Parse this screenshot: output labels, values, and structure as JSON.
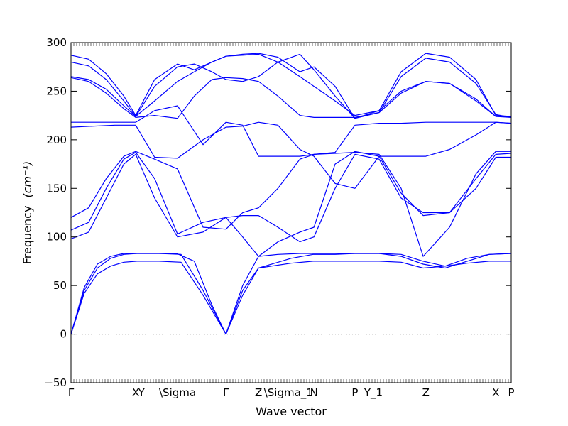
{
  "chart_data": {
    "type": "line",
    "title": "",
    "xlabel": "Wave vector",
    "ylabel": "Frequency",
    "ylabel_unit": "(cm⁻¹)",
    "ylim": [
      -50,
      300
    ],
    "yticks": [
      -50,
      0,
      50,
      100,
      150,
      200,
      250,
      300
    ],
    "xlim": [
      0,
      1
    ],
    "grid": false,
    "zero_line": {
      "y": 0,
      "style": "dotted"
    },
    "line_color": "#0000ff",
    "high_symmetry_points": [
      {
        "label": "Γ",
        "x": 0.0
      },
      {
        "label": "X",
        "x": 0.147
      },
      {
        "label": "Y",
        "x": 0.16
      },
      {
        "label": "\\Sigma",
        "x": 0.242
      },
      {
        "label": "Γ",
        "x": 0.352
      },
      {
        "label": "Z",
        "x": 0.426
      },
      {
        "label": "\\Sigma_1",
        "x": 0.494
      },
      {
        "label": "N",
        "x": 0.552
      },
      {
        "label": "P",
        "x": 0.645
      },
      {
        "label": "Y_1",
        "x": 0.687
      },
      {
        "label": "Z",
        "x": 0.806
      },
      {
        "label": "X",
        "x": 0.965
      },
      {
        "label": "P",
        "x": 1.0
      }
    ],
    "series": [
      {
        "x": [
          0,
          0.03,
          0.06,
          0.09,
          0.12,
          0.15,
          0.2,
          0.25,
          0.3,
          0.352,
          0.39,
          0.426,
          0.5,
          0.55,
          0.6,
          0.645,
          0.7,
          0.75,
          0.8,
          0.85,
          0.9,
          0.95,
          1
        ],
        "y": [
          0,
          45,
          68,
          78,
          82,
          83,
          83,
          82,
          45,
          0,
          45,
          68,
          73,
          75,
          75,
          75,
          75,
          74,
          68,
          70,
          73,
          75,
          75
        ]
      },
      {
        "x": [
          0,
          0.03,
          0.06,
          0.09,
          0.12,
          0.15,
          0.2,
          0.25,
          0.3,
          0.352,
          0.39,
          0.426,
          0.5,
          0.55,
          0.6,
          0.645,
          0.7,
          0.75,
          0.8,
          0.85,
          0.9,
          0.95,
          1
        ],
        "y": [
          0,
          42,
          62,
          70,
          74,
          75,
          75,
          74,
          40,
          0,
          40,
          68,
          78,
          82,
          82,
          83,
          83,
          80,
          72,
          68,
          75,
          82,
          83
        ]
      },
      {
        "x": [
          0,
          0.03,
          0.06,
          0.09,
          0.12,
          0.15,
          0.2,
          0.24,
          0.28,
          0.32,
          0.352,
          0.39,
          0.426,
          0.47,
          0.52,
          0.55,
          0.6,
          0.645,
          0.7,
          0.75,
          0.8,
          0.85,
          0.9,
          0.95,
          1
        ],
        "y": [
          0,
          48,
          72,
          80,
          83,
          83,
          83,
          83,
          75,
          30,
          0,
          50,
          80,
          82,
          83,
          83,
          83,
          83,
          83,
          82,
          75,
          70,
          78,
          82,
          83
        ]
      },
      {
        "x": [
          0,
          0.04,
          0.08,
          0.12,
          0.147,
          0.19,
          0.242,
          0.3,
          0.352,
          0.39,
          0.426,
          0.47,
          0.52,
          0.552,
          0.6,
          0.645,
          0.7,
          0.75,
          0.8,
          0.86,
          0.92,
          0.965,
          1
        ],
        "y": [
          98,
          105,
          140,
          175,
          185,
          140,
          100,
          105,
          120,
          122,
          122,
          110,
          95,
          100,
          150,
          185,
          180,
          140,
          125,
          125,
          150,
          182,
          182
        ]
      },
      {
        "x": [
          0,
          0.04,
          0.08,
          0.12,
          0.147,
          0.19,
          0.242,
          0.3,
          0.352,
          0.39,
          0.426,
          0.47,
          0.52,
          0.552,
          0.6,
          0.645,
          0.7,
          0.75,
          0.8,
          0.86,
          0.92,
          0.965,
          1
        ],
        "y": [
          107,
          115,
          150,
          180,
          187,
          160,
          103,
          115,
          120,
          100,
          80,
          95,
          105,
          110,
          175,
          188,
          183,
          145,
          122,
          125,
          160,
          185,
          186
        ]
      },
      {
        "x": [
          0,
          0.04,
          0.08,
          0.12,
          0.147,
          0.19,
          0.242,
          0.3,
          0.352,
          0.39,
          0.426,
          0.47,
          0.52,
          0.552,
          0.6,
          0.645,
          0.7,
          0.75,
          0.8,
          0.86,
          0.92,
          0.965,
          1
        ],
        "y": [
          120,
          130,
          160,
          183,
          188,
          180,
          170,
          110,
          108,
          125,
          130,
          150,
          180,
          185,
          186,
          187,
          185,
          150,
          80,
          110,
          165,
          188,
          188
        ]
      },
      {
        "x": [
          0,
          0.1,
          0.147,
          0.19,
          0.242,
          0.3,
          0.352,
          0.39,
          0.426,
          0.47,
          0.52,
          0.552,
          0.6,
          0.645,
          0.7,
          0.75,
          0.806,
          0.86,
          0.92,
          0.965,
          1
        ],
        "y": [
          213,
          215,
          215,
          182,
          181,
          200,
          213,
          214,
          218,
          215,
          190,
          183,
          155,
          150,
          183,
          183,
          183,
          190,
          205,
          218,
          217
        ]
      },
      {
        "x": [
          0,
          0.1,
          0.147,
          0.19,
          0.242,
          0.3,
          0.352,
          0.39,
          0.426,
          0.47,
          0.52,
          0.552,
          0.6,
          0.645,
          0.7,
          0.75,
          0.806,
          0.86,
          0.92,
          0.965,
          1
        ],
        "y": [
          218,
          218,
          218,
          230,
          235,
          195,
          218,
          215,
          183,
          183,
          183,
          185,
          187,
          215,
          217,
          217,
          218,
          218,
          218,
          218,
          217
        ]
      },
      {
        "x": [
          0,
          0.04,
          0.08,
          0.12,
          0.147,
          0.19,
          0.242,
          0.28,
          0.32,
          0.352,
          0.39,
          0.426,
          0.47,
          0.52,
          0.552,
          0.6,
          0.645,
          0.7,
          0.75,
          0.806,
          0.86,
          0.92,
          0.965,
          1
        ],
        "y": [
          264,
          260,
          248,
          232,
          223,
          225,
          222,
          245,
          262,
          264,
          263,
          260,
          245,
          225,
          223,
          223,
          223,
          228,
          248,
          260,
          258,
          240,
          224,
          223
        ]
      },
      {
        "x": [
          0,
          0.04,
          0.08,
          0.12,
          0.147,
          0.19,
          0.242,
          0.28,
          0.32,
          0.352,
          0.39,
          0.426,
          0.47,
          0.52,
          0.552,
          0.6,
          0.645,
          0.7,
          0.75,
          0.806,
          0.86,
          0.92,
          0.965,
          1
        ],
        "y": [
          265,
          262,
          252,
          235,
          224,
          240,
          260,
          270,
          280,
          286,
          287,
          288,
          280,
          265,
          255,
          240,
          225,
          230,
          250,
          260,
          258,
          242,
          224,
          224
        ]
      },
      {
        "x": [
          0,
          0.04,
          0.08,
          0.12,
          0.147,
          0.19,
          0.242,
          0.28,
          0.32,
          0.352,
          0.39,
          0.426,
          0.47,
          0.52,
          0.552,
          0.6,
          0.645,
          0.7,
          0.75,
          0.806,
          0.86,
          0.92,
          0.965,
          1
        ],
        "y": [
          280,
          276,
          262,
          240,
          224,
          255,
          275,
          278,
          270,
          262,
          260,
          265,
          280,
          288,
          272,
          245,
          222,
          228,
          265,
          284,
          280,
          258,
          226,
          223
        ]
      },
      {
        "x": [
          0,
          0.04,
          0.08,
          0.12,
          0.147,
          0.19,
          0.242,
          0.28,
          0.32,
          0.352,
          0.39,
          0.426,
          0.47,
          0.52,
          0.552,
          0.6,
          0.645,
          0.7,
          0.75,
          0.806,
          0.86,
          0.92,
          0.965,
          1
        ],
        "y": [
          287,
          283,
          268,
          245,
          225,
          262,
          278,
          272,
          280,
          286,
          288,
          289,
          285,
          270,
          275,
          255,
          222,
          230,
          270,
          289,
          285,
          262,
          225,
          224
        ]
      }
    ]
  }
}
